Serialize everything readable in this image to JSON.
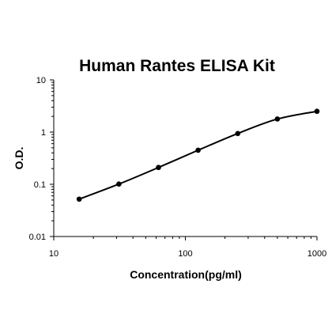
{
  "chart_data": {
    "type": "line",
    "title": "Human Rantes ELISA Kit",
    "xlabel": "Concentration(pg/ml)",
    "ylabel": "O.D.",
    "xscale": "log",
    "yscale": "log",
    "xlim": [
      10,
      1000
    ],
    "ylim": [
      0.01,
      10
    ],
    "grid": false,
    "x_ticks": [
      {
        "value": 10,
        "label": "10"
      },
      {
        "value": 100,
        "label": "100"
      },
      {
        "value": 1000,
        "label": "1000"
      }
    ],
    "y_ticks": [
      {
        "value": 10,
        "label": "10"
      },
      {
        "value": 1,
        "label": "1"
      },
      {
        "value": 0.1,
        "label": "0.1"
      },
      {
        "value": 0.01,
        "label": "0.01"
      }
    ],
    "series": [
      {
        "x": [
          15.6,
          31.25,
          62.5,
          125,
          250,
          500,
          1000
        ],
        "y": [
          0.052,
          0.101,
          0.21,
          0.45,
          0.94,
          1.78,
          2.5
        ]
      }
    ],
    "colors": {
      "line": "#000000",
      "marker": "#000000",
      "axis": "#000000"
    }
  }
}
